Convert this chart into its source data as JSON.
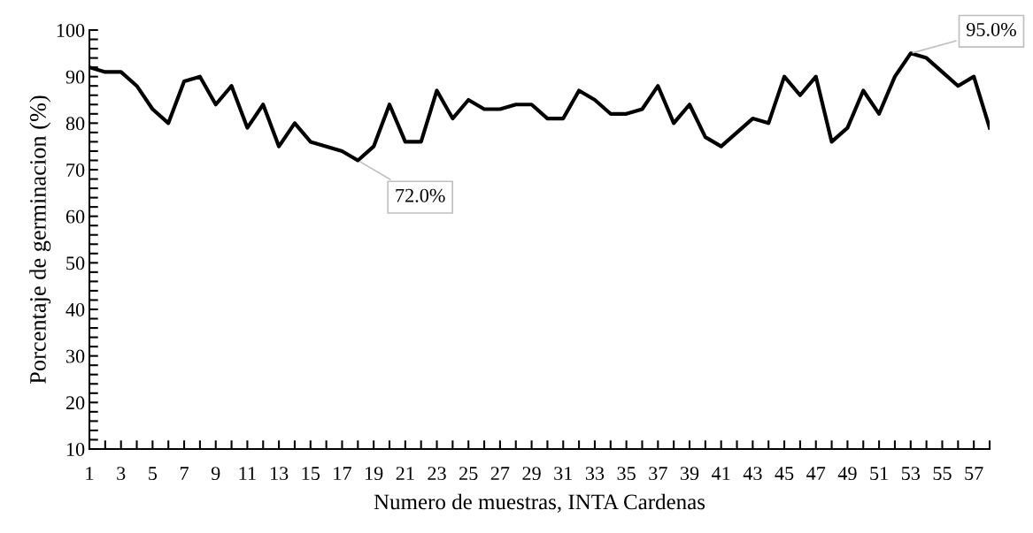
{
  "chart_data": {
    "type": "line",
    "xlabel": "Numero de muestras, INTA Cardenas",
    "ylabel": "Porcentaje de germinacion (%)",
    "x": [
      1,
      2,
      3,
      4,
      5,
      6,
      7,
      8,
      9,
      10,
      11,
      12,
      13,
      14,
      15,
      16,
      17,
      18,
      19,
      20,
      21,
      22,
      23,
      24,
      25,
      26,
      27,
      28,
      29,
      30,
      31,
      32,
      33,
      34,
      35,
      36,
      37,
      38,
      39,
      40,
      41,
      42,
      43,
      44,
      45,
      46,
      47,
      48,
      49,
      50,
      51,
      52,
      53,
      54,
      55,
      56,
      57,
      58
    ],
    "series": [
      {
        "color": "#000000",
        "values": [
          92,
          91,
          91,
          88,
          83,
          80,
          89,
          90,
          84,
          88,
          79,
          84,
          75,
          80,
          76,
          75,
          74,
          72,
          75,
          84,
          76,
          76,
          87,
          81,
          85,
          83,
          83,
          84,
          84,
          81,
          81,
          87,
          85,
          82,
          82,
          83,
          88,
          80,
          84,
          77,
          75,
          78,
          81,
          80,
          90,
          86,
          90,
          76,
          79,
          87,
          82,
          90,
          95,
          94,
          91,
          88,
          90,
          79
        ]
      }
    ],
    "xlim": [
      1,
      58
    ],
    "xticks": [
      1,
      {
        "value": 2,
        "label": null
      },
      3,
      {
        "value": 4,
        "label": null
      },
      5,
      {
        "value": 6,
        "label": null
      },
      7,
      {
        "value": 8,
        "label": null
      },
      9,
      {
        "value": 10,
        "label": null
      },
      11,
      {
        "value": 12,
        "label": null
      },
      13,
      {
        "value": 14,
        "label": null
      },
      15,
      {
        "value": 16,
        "label": null
      },
      17,
      {
        "value": 18,
        "label": null
      },
      19,
      {
        "value": 20,
        "label": null
      },
      21,
      {
        "value": 22,
        "label": null
      },
      23,
      {
        "value": 24,
        "label": null
      },
      25,
      {
        "value": 26,
        "label": null
      },
      27,
      {
        "value": 28,
        "label": null
      },
      29,
      {
        "value": 30,
        "label": null
      },
      31,
      {
        "value": 32,
        "label": null
      },
      33,
      {
        "value": 34,
        "label": null
      },
      35,
      {
        "value": 36,
        "label": null
      },
      37,
      {
        "value": 38,
        "label": null
      },
      39,
      {
        "value": 40,
        "label": null
      },
      41,
      {
        "value": 42,
        "label": null
      },
      43,
      {
        "value": 44,
        "label": null
      },
      45,
      {
        "value": 46,
        "label": null
      },
      47,
      {
        "value": 48,
        "label": null
      },
      49,
      {
        "value": 50,
        "label": null
      },
      51,
      {
        "value": 52,
        "label": null
      },
      53,
      {
        "value": 54,
        "label": null
      },
      55,
      {
        "value": 56,
        "label": null
      },
      57,
      {
        "value": 58,
        "label": null
      }
    ],
    "ylim": [
      10,
      100
    ],
    "yticks": [
      10,
      {
        "value": 12,
        "label": null
      },
      {
        "value": 14,
        "label": null
      },
      {
        "value": 16,
        "label": null
      },
      {
        "value": 18,
        "label": null
      },
      20,
      {
        "value": 22,
        "label": null
      },
      {
        "value": 24,
        "label": null
      },
      {
        "value": 26,
        "label": null
      },
      {
        "value": 28,
        "label": null
      },
      30,
      {
        "value": 32,
        "label": null
      },
      {
        "value": 34,
        "label": null
      },
      {
        "value": 36,
        "label": null
      },
      {
        "value": 38,
        "label": null
      },
      40,
      {
        "value": 42,
        "label": null
      },
      {
        "value": 44,
        "label": null
      },
      {
        "value": 46,
        "label": null
      },
      {
        "value": 48,
        "label": null
      },
      50,
      {
        "value": 52,
        "label": null
      },
      {
        "value": 54,
        "label": null
      },
      {
        "value": 56,
        "label": null
      },
      {
        "value": 58,
        "label": null
      },
      60,
      {
        "value": 62,
        "label": null
      },
      {
        "value": 64,
        "label": null
      },
      {
        "value": 66,
        "label": null
      },
      {
        "value": 68,
        "label": null
      },
      70,
      {
        "value": 72,
        "label": null
      },
      {
        "value": 74,
        "label": null
      },
      {
        "value": 76,
        "label": null
      },
      {
        "value": 78,
        "label": null
      },
      80,
      {
        "value": 82,
        "label": null
      },
      {
        "value": 84,
        "label": null
      },
      {
        "value": 86,
        "label": null
      },
      {
        "value": 88,
        "label": null
      },
      90,
      {
        "value": 92,
        "label": null
      },
      {
        "value": 94,
        "label": null
      },
      {
        "value": 96,
        "label": null
      },
      {
        "value": 98,
        "label": null
      },
      100
    ],
    "annotations": [
      {
        "text": "72.0%",
        "x": 18,
        "y": 72
      },
      {
        "text": "95.0%",
        "x": 53,
        "y": 95
      }
    ],
    "grid": false,
    "legend": false,
    "marker": "none",
    "line_style": "solid"
  }
}
